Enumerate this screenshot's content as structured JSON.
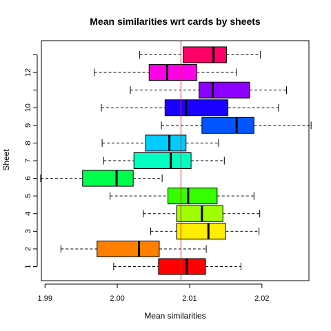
{
  "chart_data": {
    "type": "boxplot",
    "orientation": "horizontal",
    "title": "Mean similarities wrt cards by sheets",
    "xlabel": "Mean similarities",
    "ylabel": "Sheet",
    "xlim": [
      1.9895,
      2.0265
    ],
    "x_ticks": [
      "1.99",
      "2.00",
      "2.01",
      "2.02"
    ],
    "x_tick_values": [
      1.99,
      2.0,
      2.01,
      2.02
    ],
    "y_tick_labels": [
      {
        "sheet": 1,
        "label": "1"
      },
      {
        "sheet": 2,
        "label": "2"
      },
      {
        "sheet": 3,
        "label": "3"
      },
      {
        "sheet": 4,
        "label": "4"
      },
      {
        "sheet": 5,
        "label": "5"
      },
      {
        "sheet": 6,
        "label": "6"
      },
      {
        "sheet": 7,
        "label": "7"
      },
      {
        "sheet": 8,
        "label": "8"
      },
      {
        "sheet": 9,
        "label": "9"
      },
      {
        "sheet": 10,
        "label": "10"
      },
      {
        "sheet": 12,
        "label": "12"
      }
    ],
    "reference_line": {
      "x": 2.0088,
      "color": "#cc3333"
    },
    "series": [
      {
        "sheet": 1,
        "min": 1.9995,
        "q1": 2.0057,
        "median": 2.0096,
        "q3": 2.0122,
        "max": 2.0171,
        "color": "#ff0000"
      },
      {
        "sheet": 2,
        "min": 1.9922,
        "q1": 1.9972,
        "median": 2.003,
        "q3": 2.0058,
        "max": 2.0123,
        "color": "#ff7f00"
      },
      {
        "sheet": 3,
        "min": 2.0046,
        "q1": 2.0082,
        "median": 2.0126,
        "q3": 2.015,
        "max": 2.0196,
        "color": "#ffee00"
      },
      {
        "sheet": 4,
        "min": 2.0036,
        "q1": 2.0082,
        "median": 2.0117,
        "q3": 2.0146,
        "max": 2.0197,
        "color": "#a0ff00"
      },
      {
        "sheet": 5,
        "min": 1.999,
        "q1": 2.007,
        "median": 2.0098,
        "q3": 2.0138,
        "max": 2.0189,
        "color": "#33ff00"
      },
      {
        "sheet": 6,
        "min": 1.9894,
        "q1": 1.9952,
        "median": 1.9999,
        "q3": 2.0022,
        "max": 2.0062,
        "color": "#00ff4d"
      },
      {
        "sheet": 7,
        "min": 1.9981,
        "q1": 2.0023,
        "median": 2.0074,
        "q3": 2.0102,
        "max": 2.0148,
        "color": "#00ffc0"
      },
      {
        "sheet": 8,
        "min": 1.9979,
        "q1": 2.0039,
        "median": 2.0072,
        "q3": 2.0095,
        "max": 2.014,
        "color": "#00ccff"
      },
      {
        "sheet": 9,
        "min": 2.0061,
        "q1": 2.0117,
        "median": 2.0165,
        "q3": 2.0189,
        "max": 2.0268,
        "color": "#0055ff"
      },
      {
        "sheet": 10,
        "min": 1.9978,
        "q1": 2.0066,
        "median": 2.0095,
        "q3": 2.0153,
        "max": 2.0223,
        "color": "#1a00ff"
      },
      {
        "sheet": 11,
        "min": 2.0018,
        "q1": 2.0113,
        "median": 2.0132,
        "q3": 2.0183,
        "max": 2.0234,
        "color": "#8c00ff"
      },
      {
        "sheet": 12,
        "min": 1.9968,
        "q1": 2.0044,
        "median": 2.0069,
        "q3": 2.011,
        "max": 2.0165,
        "color": "#ff00e6"
      },
      {
        "sheet": 13,
        "min": 2.0031,
        "q1": 2.0091,
        "median": 2.0133,
        "q3": 2.0151,
        "max": 2.0198,
        "color": "#ff0066"
      }
    ],
    "grid": false,
    "legend": "none"
  }
}
